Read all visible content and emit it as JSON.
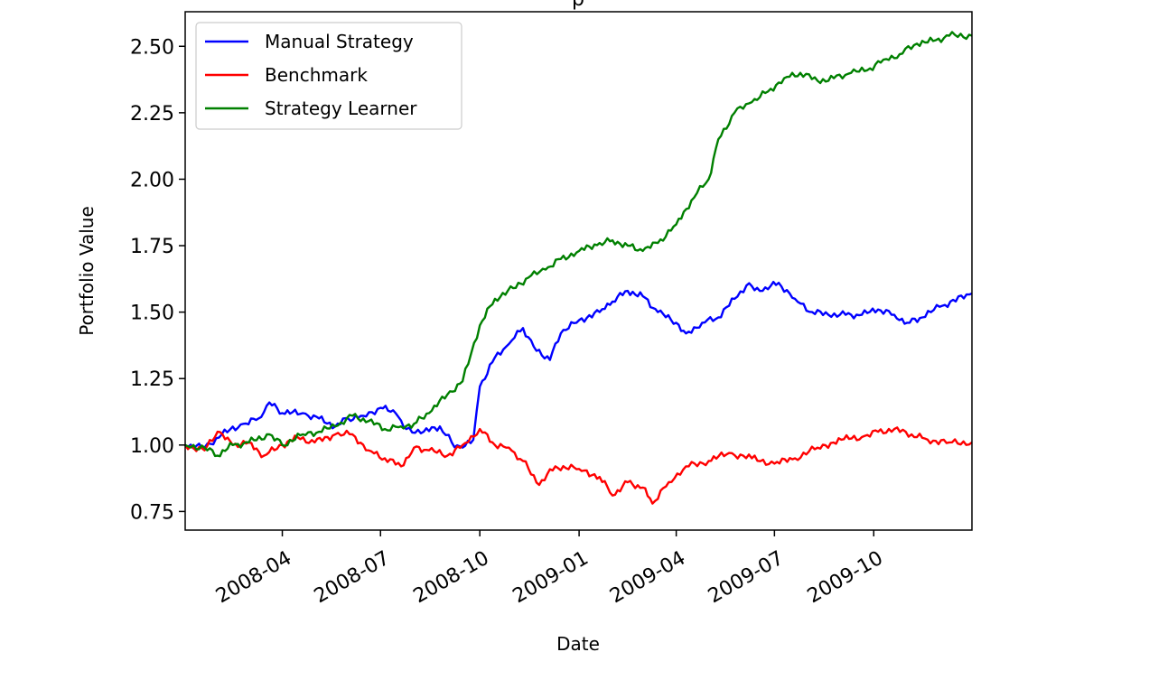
{
  "chart_data": {
    "type": "line",
    "title": "p",
    "xlabel": "Date",
    "ylabel": "Portfolio Value",
    "xlim": [
      "2008-01-02",
      "2009-12-31"
    ],
    "ylim": [
      0.68,
      2.63
    ],
    "grid": false,
    "legend_position": "top-left",
    "x_ticks": [
      "2008-04-01",
      "2008-07-01",
      "2008-10-01",
      "2009-01-01",
      "2009-04-01",
      "2009-07-01",
      "2009-10-01"
    ],
    "x_tick_labels": [
      "2008-04",
      "2008-07",
      "2008-10",
      "2009-01",
      "2009-04",
      "2009-07",
      "2009-10"
    ],
    "y_ticks": [
      0.75,
      1.0,
      1.25,
      1.5,
      1.75,
      2.0,
      2.25,
      2.5
    ],
    "y_tick_labels": [
      "0.75",
      "1.00",
      "1.25",
      "1.50",
      "1.75",
      "2.00",
      "2.25",
      "2.50"
    ],
    "series": [
      {
        "name": "Manual Strategy",
        "color": "#0000ff",
        "points": [
          [
            "2008-01-02",
            1.0
          ],
          [
            "2008-01-20",
            0.99
          ],
          [
            "2008-02-05",
            1.04
          ],
          [
            "2008-02-25",
            1.08
          ],
          [
            "2008-03-10",
            1.1
          ],
          [
            "2008-03-20",
            1.16
          ],
          [
            "2008-04-01",
            1.12
          ],
          [
            "2008-04-20",
            1.12
          ],
          [
            "2008-05-05",
            1.1
          ],
          [
            "2008-05-20",
            1.07
          ],
          [
            "2008-06-01",
            1.1
          ],
          [
            "2008-06-15",
            1.11
          ],
          [
            "2008-07-01",
            1.14
          ],
          [
            "2008-07-15",
            1.12
          ],
          [
            "2008-07-25",
            1.06
          ],
          [
            "2008-08-10",
            1.05
          ],
          [
            "2008-08-25",
            1.07
          ],
          [
            "2008-09-05",
            1.01
          ],
          [
            "2008-09-15",
            0.99
          ],
          [
            "2008-09-25",
            1.02
          ],
          [
            "2008-10-01",
            1.22
          ],
          [
            "2008-10-15",
            1.33
          ],
          [
            "2008-10-28",
            1.38
          ],
          [
            "2008-11-10",
            1.44
          ],
          [
            "2008-11-20",
            1.37
          ],
          [
            "2008-12-05",
            1.32
          ],
          [
            "2008-12-15",
            1.42
          ],
          [
            "2009-01-01",
            1.47
          ],
          [
            "2009-01-20",
            1.5
          ],
          [
            "2009-02-01",
            1.54
          ],
          [
            "2009-02-15",
            1.58
          ],
          [
            "2009-03-01",
            1.56
          ],
          [
            "2009-03-15",
            1.5
          ],
          [
            "2009-04-01",
            1.46
          ],
          [
            "2009-04-10",
            1.42
          ],
          [
            "2009-04-25",
            1.46
          ],
          [
            "2009-05-10",
            1.48
          ],
          [
            "2009-05-25",
            1.55
          ],
          [
            "2009-06-05",
            1.6
          ],
          [
            "2009-06-20",
            1.58
          ],
          [
            "2009-07-05",
            1.61
          ],
          [
            "2009-07-20",
            1.55
          ],
          [
            "2009-08-05",
            1.5
          ],
          [
            "2009-08-20",
            1.49
          ],
          [
            "2009-09-05",
            1.49
          ],
          [
            "2009-09-20",
            1.49
          ],
          [
            "2009-10-05",
            1.51
          ],
          [
            "2009-10-20",
            1.49
          ],
          [
            "2009-11-01",
            1.46
          ],
          [
            "2009-11-15",
            1.48
          ],
          [
            "2009-12-01",
            1.52
          ],
          [
            "2009-12-31",
            1.57
          ]
        ]
      },
      {
        "name": "Benchmark",
        "color": "#ff0000",
        "points": [
          [
            "2008-01-02",
            1.0
          ],
          [
            "2008-01-20",
            0.98
          ],
          [
            "2008-02-01",
            1.05
          ],
          [
            "2008-02-15",
            1.0
          ],
          [
            "2008-03-01",
            1.01
          ],
          [
            "2008-03-15",
            0.96
          ],
          [
            "2008-04-01",
            1.0
          ],
          [
            "2008-04-15",
            1.03
          ],
          [
            "2008-05-01",
            1.01
          ],
          [
            "2008-05-20",
            1.04
          ],
          [
            "2008-06-05",
            1.04
          ],
          [
            "2008-06-20",
            0.98
          ],
          [
            "2008-07-05",
            0.95
          ],
          [
            "2008-07-20",
            0.92
          ],
          [
            "2008-08-01",
            0.99
          ],
          [
            "2008-08-15",
            0.98
          ],
          [
            "2008-09-01",
            0.96
          ],
          [
            "2008-09-15",
            1.0
          ],
          [
            "2008-10-01",
            1.06
          ],
          [
            "2008-10-15",
            1.0
          ],
          [
            "2008-10-28",
            0.99
          ],
          [
            "2008-11-10",
            0.94
          ],
          [
            "2008-11-25",
            0.85
          ],
          [
            "2008-12-10",
            0.92
          ],
          [
            "2009-01-01",
            0.91
          ],
          [
            "2009-01-20",
            0.88
          ],
          [
            "2009-02-01",
            0.81
          ],
          [
            "2009-02-15",
            0.86
          ],
          [
            "2009-03-01",
            0.84
          ],
          [
            "2009-03-10",
            0.78
          ],
          [
            "2009-03-25",
            0.86
          ],
          [
            "2009-04-10",
            0.92
          ],
          [
            "2009-05-01",
            0.94
          ],
          [
            "2009-05-20",
            0.97
          ],
          [
            "2009-06-10",
            0.95
          ],
          [
            "2009-07-01",
            0.93
          ],
          [
            "2009-07-20",
            0.95
          ],
          [
            "2009-08-10",
            0.99
          ],
          [
            "2009-09-01",
            1.02
          ],
          [
            "2009-09-20",
            1.03
          ],
          [
            "2009-10-05",
            1.05
          ],
          [
            "2009-10-20",
            1.06
          ],
          [
            "2009-11-05",
            1.04
          ],
          [
            "2009-11-20",
            1.02
          ],
          [
            "2009-12-10",
            1.01
          ],
          [
            "2009-12-31",
            1.01
          ]
        ]
      },
      {
        "name": "Strategy Learner",
        "color": "#008000",
        "points": [
          [
            "2008-01-02",
            1.0
          ],
          [
            "2008-01-20",
            0.99
          ],
          [
            "2008-02-01",
            0.96
          ],
          [
            "2008-02-15",
            1.0
          ],
          [
            "2008-03-01",
            1.01
          ],
          [
            "2008-03-20",
            1.04
          ],
          [
            "2008-04-01",
            1.0
          ],
          [
            "2008-04-20",
            1.04
          ],
          [
            "2008-05-05",
            1.05
          ],
          [
            "2008-05-20",
            1.07
          ],
          [
            "2008-06-05",
            1.11
          ],
          [
            "2008-06-20",
            1.09
          ],
          [
            "2008-07-05",
            1.06
          ],
          [
            "2008-07-20",
            1.07
          ],
          [
            "2008-08-01",
            1.08
          ],
          [
            "2008-08-15",
            1.12
          ],
          [
            "2008-09-01",
            1.19
          ],
          [
            "2008-09-15",
            1.24
          ],
          [
            "2008-10-01",
            1.45
          ],
          [
            "2008-10-15",
            1.55
          ],
          [
            "2008-11-01",
            1.59
          ],
          [
            "2008-11-15",
            1.63
          ],
          [
            "2008-12-01",
            1.66
          ],
          [
            "2008-12-15",
            1.7
          ],
          [
            "2009-01-01",
            1.73
          ],
          [
            "2009-01-20",
            1.76
          ],
          [
            "2009-02-01",
            1.77
          ],
          [
            "2009-02-15",
            1.75
          ],
          [
            "2009-03-01",
            1.73
          ],
          [
            "2009-03-15",
            1.76
          ],
          [
            "2009-04-01",
            1.83
          ],
          [
            "2009-04-15",
            1.92
          ],
          [
            "2009-05-01",
            2.0
          ],
          [
            "2009-05-10",
            2.15
          ],
          [
            "2009-05-25",
            2.25
          ],
          [
            "2009-06-10",
            2.29
          ],
          [
            "2009-06-25",
            2.33
          ],
          [
            "2009-07-10",
            2.38
          ],
          [
            "2009-07-25",
            2.4
          ],
          [
            "2009-08-10",
            2.37
          ],
          [
            "2009-08-25",
            2.38
          ],
          [
            "2009-09-10",
            2.4
          ],
          [
            "2009-09-25",
            2.41
          ],
          [
            "2009-10-10",
            2.45
          ],
          [
            "2009-10-25",
            2.47
          ],
          [
            "2009-11-10",
            2.51
          ],
          [
            "2009-11-25",
            2.52
          ],
          [
            "2009-12-10",
            2.54
          ],
          [
            "2009-12-31",
            2.54
          ]
        ]
      }
    ]
  }
}
